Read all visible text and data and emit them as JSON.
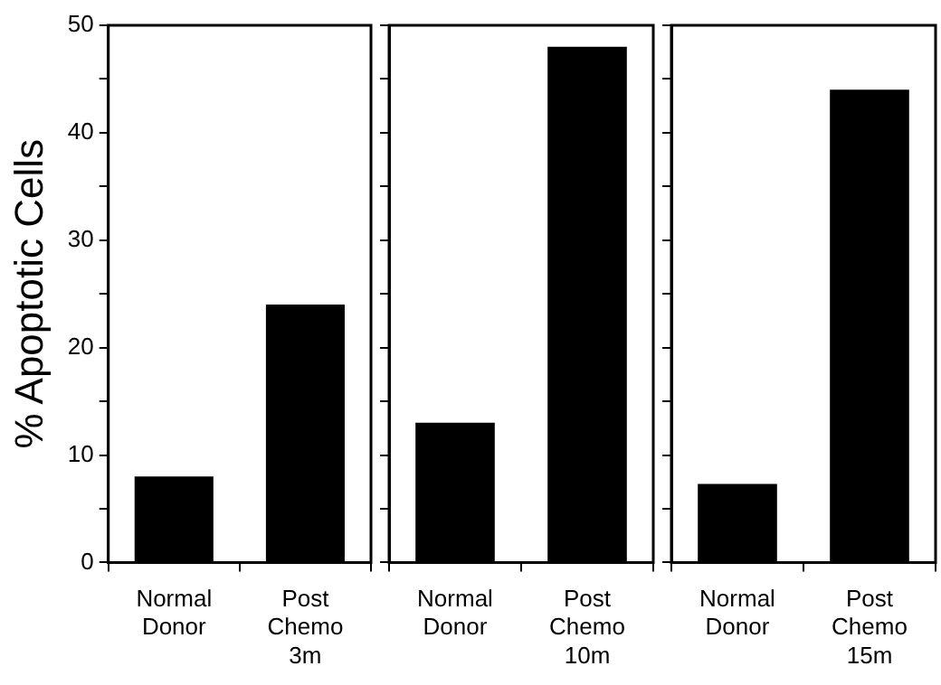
{
  "chart_data": [
    {
      "type": "bar",
      "ylabel": "% Apoptotic Cells",
      "categories": [
        "Normal Donor",
        "Post Chemo 3m"
      ],
      "values": [
        8,
        24
      ],
      "color": "#000000",
      "ylim": [
        0,
        50
      ],
      "yticks": [
        0,
        {
          "value": 5,
          "label": null
        },
        10,
        {
          "value": 15,
          "label": null
        },
        20,
        {
          "value": 25,
          "label": null
        },
        30,
        {
          "value": 35,
          "label": null
        },
        40,
        {
          "value": 45,
          "label": null
        },
        50
      ]
    },
    {
      "type": "bar",
      "categories": [
        "Normal Donor",
        "Post Chemo 10m"
      ],
      "values": [
        13,
        48
      ],
      "color": "#000000",
      "ylim": [
        0,
        50
      ],
      "yticks": [
        0,
        {
          "value": 5,
          "label": null
        },
        10,
        {
          "value": 15,
          "label": null
        },
        20,
        {
          "value": 25,
          "label": null
        },
        30,
        {
          "value": 35,
          "label": null
        },
        40,
        {
          "value": 45,
          "label": null
        },
        50
      ],
      "tick_labels": "x"
    },
    {
      "type": "bar",
      "categories": [
        "Normal Donor",
        "Post Chemo 15m"
      ],
      "values": [
        7.3,
        44
      ],
      "color": "#000000",
      "ylim": [
        0,
        50
      ],
      "yticks": [
        0,
        {
          "value": 5,
          "label": null
        },
        10,
        {
          "value": 15,
          "label": null
        },
        20,
        {
          "value": 25,
          "label": null
        },
        30,
        {
          "value": 35,
          "label": null
        },
        40,
        {
          "value": 45,
          "label": null
        },
        50
      ],
      "tick_labels": "x"
    }
  ]
}
